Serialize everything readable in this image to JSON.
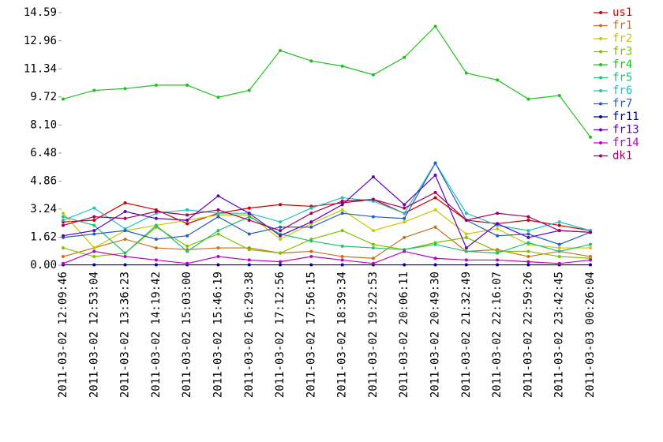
{
  "chart_data": {
    "type": "line",
    "categories": [
      "2011-03-02 12:09:46",
      "2011-03-02 12:53:04",
      "2011-03-02 13:36:23",
      "2011-03-02 14:19:42",
      "2011-03-02 15:03:00",
      "2011-03-02 15:46:19",
      "2011-03-02 16:29:38",
      "2011-03-02 17:12:56",
      "2011-03-02 17:56:15",
      "2011-03-02 18:39:34",
      "2011-03-02 19:22:53",
      "2011-03-02 20:06:11",
      "2011-03-02 20:49:30",
      "2011-03-02 21:32:49",
      "2011-03-02 22:16:07",
      "2011-03-02 22:59:26",
      "2011-03-02 23:42:45",
      "2011-03-03 00:26:04"
    ],
    "ylim": [
      0,
      14.59
    ],
    "yticks": [
      {
        "value": 0,
        "label": "0.00"
      },
      1.62,
      3.24,
      4.86,
      6.48,
      {
        "value": 8.1,
        "label": "8.10"
      },
      9.72,
      11.34,
      12.96,
      14.59
    ],
    "grid": false,
    "legend": "right",
    "series": [
      {
        "name": "us1",
        "color": "#cc0000",
        "values": [
          2.5,
          2.6,
          3.6,
          3.2,
          2.4,
          3.0,
          3.3,
          3.5,
          3.4,
          3.6,
          3.8,
          3.0,
          3.9,
          2.6,
          2.4,
          2.6,
          2.3,
          2.0
        ]
      },
      {
        "name": "fr1",
        "color": "#c87020",
        "values": [
          0.5,
          1.0,
          1.5,
          1.0,
          0.9,
          1.0,
          1.0,
          0.7,
          0.8,
          0.5,
          0.4,
          1.6,
          2.2,
          0.8,
          0.9,
          0.5,
          0.8,
          0.5
        ]
      },
      {
        "name": "fr2",
        "color": "#c8c800",
        "values": [
          3.0,
          1.0,
          2.0,
          2.3,
          2.6,
          2.9,
          2.9,
          1.5,
          2.4,
          3.2,
          2.0,
          2.5,
          3.2,
          1.8,
          2.1,
          1.2,
          1.0,
          1.0
        ]
      },
      {
        "name": "fr3",
        "color": "#80c000",
        "values": [
          1.0,
          0.5,
          0.7,
          2.2,
          1.1,
          1.8,
          0.9,
          0.7,
          1.5,
          2.0,
          1.2,
          0.9,
          1.3,
          1.6,
          0.8,
          0.8,
          0.5,
          0.4
        ]
      },
      {
        "name": "fr4",
        "color": "#20c020",
        "values": [
          9.6,
          10.1,
          10.2,
          10.4,
          10.4,
          9.7,
          10.1,
          12.4,
          11.8,
          11.5,
          11.0,
          12.0,
          13.8,
          11.1,
          10.7,
          9.6,
          9.8,
          7.4
        ]
      },
      {
        "name": "fr5",
        "color": "#20c070",
        "values": [
          2.8,
          2.3,
          0.7,
          2.3,
          0.8,
          2.0,
          2.8,
          1.8,
          1.4,
          1.1,
          1.0,
          0.9,
          1.2,
          0.8,
          0.7,
          1.3,
          0.8,
          1.2
        ]
      },
      {
        "name": "fr6",
        "color": "#20c0c0",
        "values": [
          2.6,
          3.3,
          2.1,
          3.0,
          3.2,
          3.0,
          3.0,
          2.5,
          3.3,
          3.9,
          3.7,
          3.0,
          5.9,
          3.0,
          2.3,
          2.0,
          2.5,
          2.0
        ]
      },
      {
        "name": "fr7",
        "color": "#2060c0",
        "values": [
          1.6,
          1.8,
          2.0,
          1.5,
          1.7,
          2.8,
          1.8,
          2.2,
          2.2,
          3.0,
          2.8,
          2.7,
          5.9,
          2.6,
          1.7,
          1.8,
          1.2,
          1.9
        ]
      },
      {
        "name": "fr11",
        "color": "#0000a0",
        "values": [
          0.02,
          0.02,
          0.02,
          0.02,
          0.02,
          0.02,
          0.02,
          0.02,
          0.02,
          0.02,
          0.02,
          0.02,
          0.02,
          0.02,
          0.02,
          0.02,
          0.02,
          0.02
        ]
      },
      {
        "name": "fr13",
        "color": "#6000c0",
        "values": [
          1.7,
          2.0,
          3.1,
          2.7,
          2.6,
          4.0,
          3.0,
          1.7,
          2.5,
          3.5,
          5.1,
          3.5,
          5.2,
          1.0,
          2.4,
          1.6,
          2.0,
          1.9
        ]
      },
      {
        "name": "fr14",
        "color": "#c000c0",
        "values": [
          0.1,
          0.8,
          0.5,
          0.3,
          0.1,
          0.5,
          0.3,
          0.2,
          0.5,
          0.3,
          0.1,
          0.8,
          0.4,
          0.3,
          0.3,
          0.2,
          0.1,
          0.3
        ]
      },
      {
        "name": "dk1",
        "color": "#a00060",
        "values": [
          2.3,
          2.8,
          2.7,
          3.1,
          2.9,
          3.2,
          2.6,
          2.0,
          3.0,
          3.7,
          3.8,
          3.3,
          4.2,
          2.6,
          3.0,
          2.8,
          2.0,
          1.9
        ]
      }
    ]
  }
}
